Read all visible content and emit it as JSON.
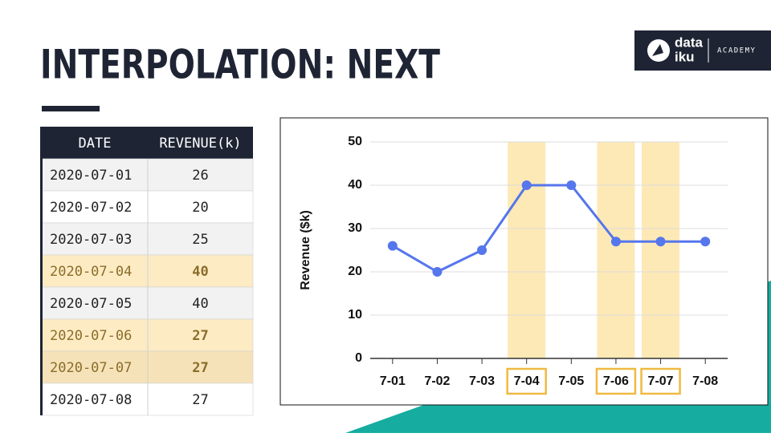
{
  "header": {
    "title": "INTERPOLATION: NEXT",
    "logo": {
      "word1": "data",
      "word2": "iku",
      "tag": "ACADEMY"
    }
  },
  "table": {
    "columns": [
      "DATE",
      "REVENUE(k)"
    ],
    "rows": [
      [
        "2020-07-01",
        26
      ],
      [
        "2020-07-02",
        20
      ],
      [
        "2020-07-03",
        25
      ],
      [
        "2020-07-04",
        40
      ],
      [
        "2020-07-05",
        40
      ],
      [
        "2020-07-06",
        27
      ],
      [
        "2020-07-07",
        27
      ],
      [
        "2020-07-08",
        27
      ]
    ],
    "highlight_rows": [
      3,
      5,
      6
    ]
  },
  "chart_data": {
    "type": "line",
    "y_label": "Revenue ($k)",
    "categories": [
      "7-01",
      "7-02",
      "7-03",
      "7-04",
      "7-05",
      "7-06",
      "7-07",
      "7-08"
    ],
    "values": [
      26,
      20,
      25,
      40,
      40,
      27,
      27,
      27
    ],
    "color": "#5576ec",
    "ylim": [
      0,
      50
    ],
    "yticks": [
      0,
      10,
      20,
      30,
      40,
      50
    ],
    "grid": true,
    "highlight": [
      3,
      5,
      6
    ]
  }
}
